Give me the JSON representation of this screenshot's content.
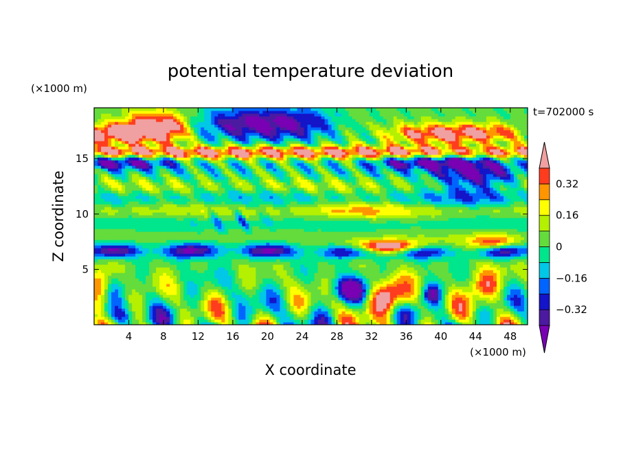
{
  "chart_data": {
    "type": "heatmap",
    "title": "potential temperature deviation",
    "xlabel": "X coordinate",
    "ylabel": "Z coordinate",
    "x_unit": "(×1000 m)",
    "y_unit": "(×1000 m)",
    "time_label": "t=702000 s",
    "xlim": [
      0,
      50
    ],
    "ylim": [
      0,
      19.6
    ],
    "xticks": [
      4,
      8,
      12,
      16,
      20,
      24,
      28,
      32,
      36,
      40,
      44,
      48
    ],
    "yticks": [
      5,
      10,
      15
    ],
    "colorbar": {
      "levels": [
        -0.4,
        -0.32,
        -0.24,
        -0.16,
        -0.08,
        0,
        0.08,
        0.16,
        0.24,
        0.32,
        0.4
      ],
      "labeled_ticks": [
        0.32,
        0.16,
        0,
        -0.16,
        -0.32
      ],
      "tick_labels": [
        "0.32",
        "0.16",
        "0",
        "−0.16",
        "−0.32"
      ],
      "colors": [
        "#7a00b4",
        "#4c1aa0",
        "#1414c8",
        "#0064ff",
        "#00c8e6",
        "#00e68c",
        "#64dc3c",
        "#b4f000",
        "#ffff00",
        "#ff9600",
        "#ff3c1e",
        "#f0a0a0"
      ],
      "extend": "both"
    },
    "grid": false,
    "legend_position": "right"
  }
}
